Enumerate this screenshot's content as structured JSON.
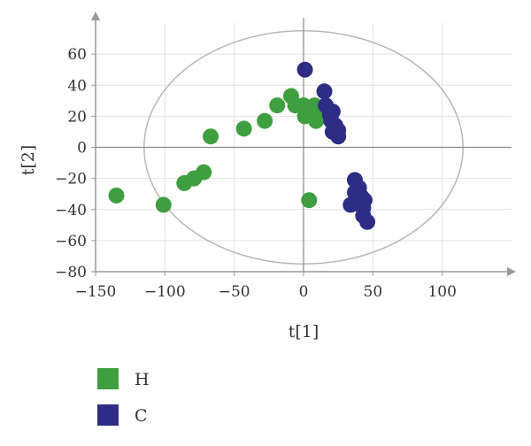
{
  "chart_data": {
    "type": "scatter",
    "xlabel": "t[1]",
    "ylabel": "t[2]",
    "xlim": [
      -150,
      150
    ],
    "ylim": [
      -80,
      80
    ],
    "xticks": [
      -150,
      -100,
      -50,
      0,
      50,
      100
    ],
    "yticks": [
      60,
      40,
      20,
      0,
      -20,
      -40,
      -60,
      -80
    ],
    "xtick_labels": [
      "−150",
      "−100",
      "−50",
      "0",
      "50",
      "100"
    ],
    "ytick_labels": [
      "60",
      "40",
      "20",
      "0",
      "−20",
      "−40",
      "−60",
      "−80"
    ],
    "grid": true,
    "ellipse": {
      "cx": 0,
      "cy": 0,
      "rx": 115,
      "ry": 75
    },
    "legend_position": "bottom-left",
    "series": [
      {
        "name": "H",
        "color": "#3f9e3f",
        "points": [
          [
            -135,
            -31
          ],
          [
            -101,
            -37
          ],
          [
            -86,
            -23
          ],
          [
            -79,
            -20
          ],
          [
            -72,
            -16
          ],
          [
            -67,
            7
          ],
          [
            -43,
            12
          ],
          [
            -28,
            17
          ],
          [
            -19,
            27
          ],
          [
            -9,
            33
          ],
          [
            -6,
            27
          ],
          [
            0,
            27
          ],
          [
            1,
            20
          ],
          [
            5,
            23
          ],
          [
            8,
            27
          ],
          [
            10,
            24
          ],
          [
            9,
            17
          ],
          [
            4,
            -34
          ],
          [
            13,
            20
          ],
          [
            16,
            25
          ]
        ]
      },
      {
        "name": "C",
        "color": "#2e2d85",
        "points": [
          [
            1,
            50
          ],
          [
            15,
            36
          ],
          [
            16,
            27
          ],
          [
            19,
            21
          ],
          [
            21,
            23
          ],
          [
            20,
            17
          ],
          [
            23,
            14
          ],
          [
            21,
            10
          ],
          [
            25,
            11
          ],
          [
            25,
            7
          ],
          [
            37,
            -21
          ],
          [
            37,
            -29
          ],
          [
            40,
            -26
          ],
          [
            34,
            -37
          ],
          [
            42,
            -32
          ],
          [
            44,
            -34
          ],
          [
            43,
            -39
          ],
          [
            43,
            -44
          ],
          [
            46,
            -48
          ],
          [
            39,
            -33
          ]
        ]
      }
    ]
  }
}
